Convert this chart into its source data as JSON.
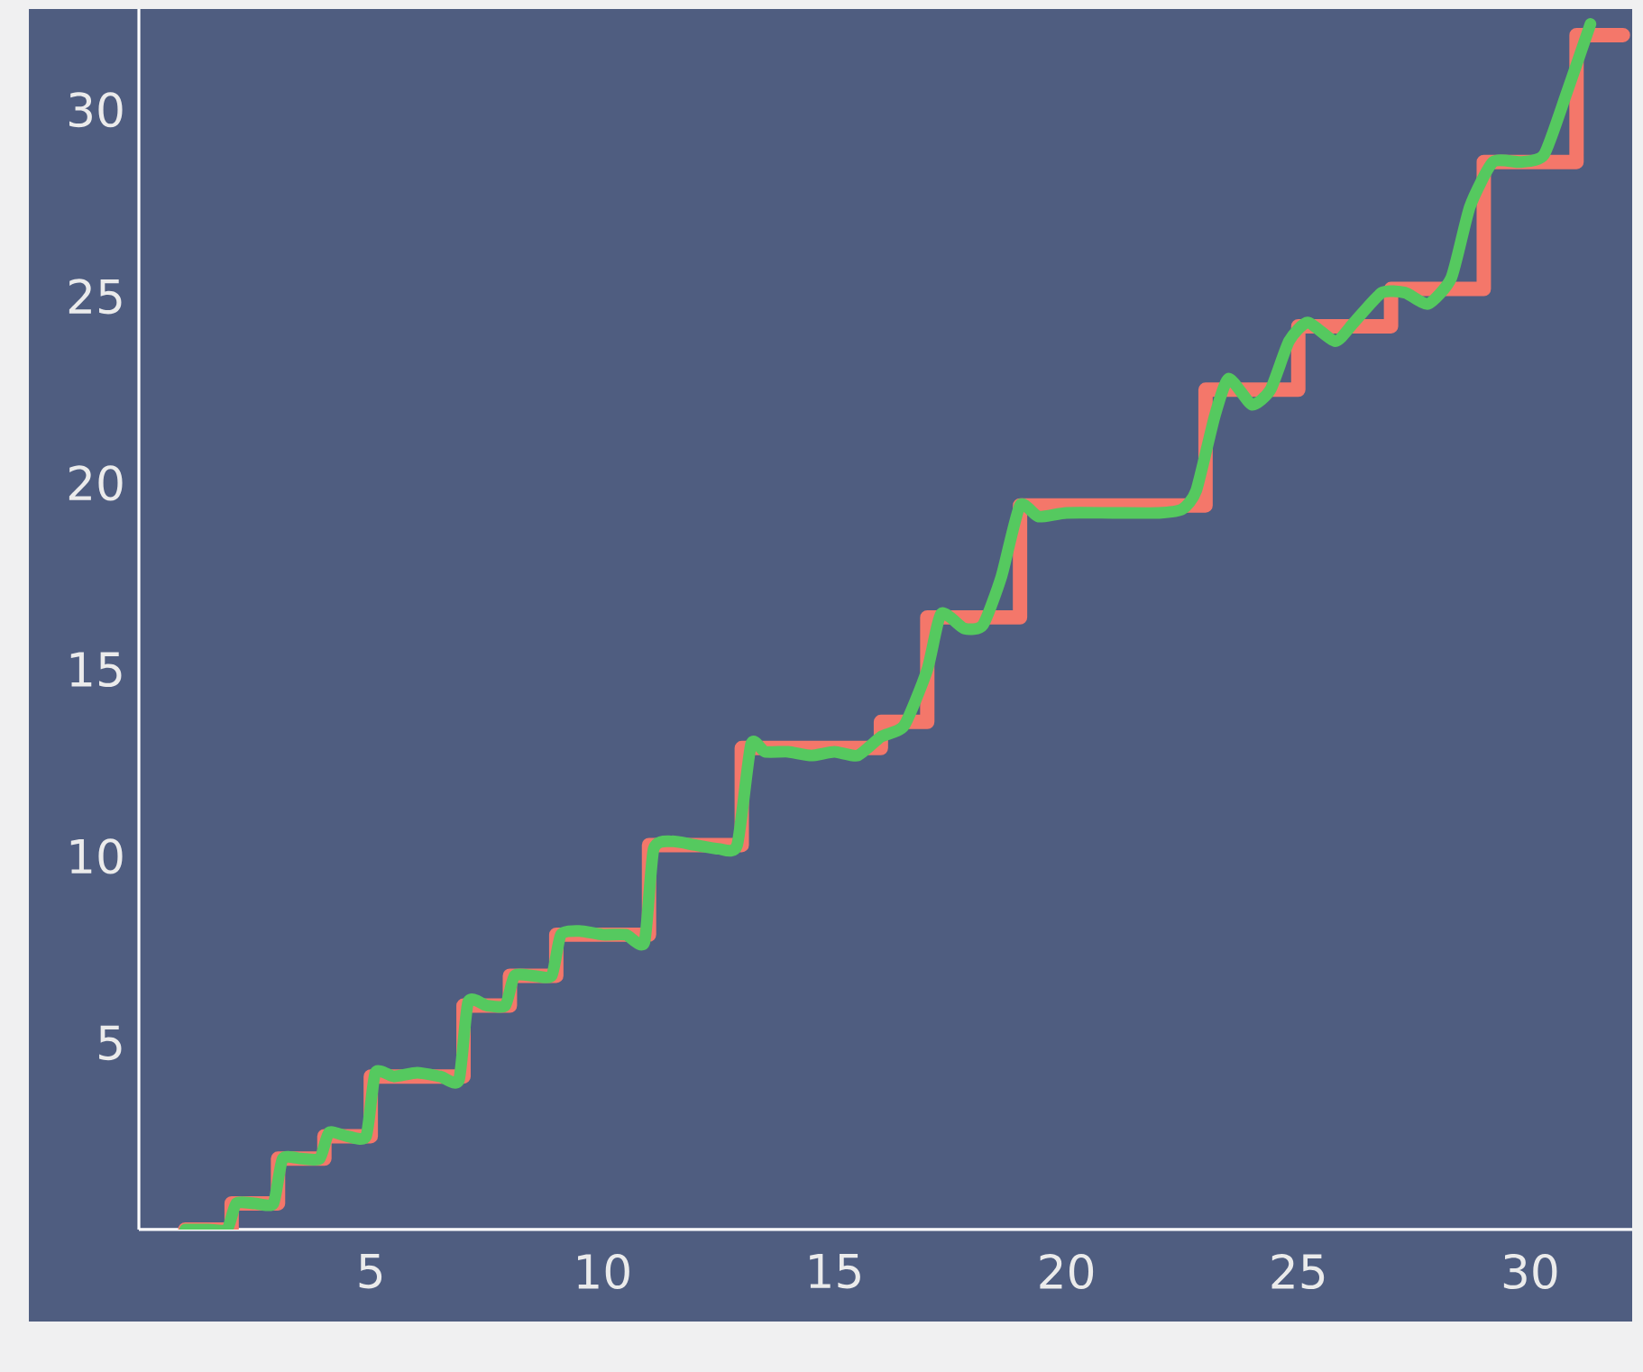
{
  "chart_data": {
    "type": "line",
    "xlim": [
      0,
      32.2
    ],
    "ylim": [
      0,
      32.7
    ],
    "xticks": [
      5,
      10,
      15,
      20,
      25,
      30
    ],
    "yticks": [
      5,
      10,
      15,
      20,
      25,
      30
    ],
    "grid": false,
    "marker": "none",
    "line_style": "solid",
    "series": [
      {
        "type": "step",
        "color": "#f4776a",
        "x": [
          1,
          2,
          3,
          4,
          5,
          7,
          8,
          9,
          11,
          13,
          16,
          17,
          19,
          23,
          25,
          27,
          29,
          31,
          32
        ],
        "values": [
          0,
          0.7,
          1.9,
          2.5,
          4.1,
          6.0,
          6.8,
          7.9,
          10.3,
          12.9,
          13.6,
          16.4,
          19.4,
          22.5,
          24.2,
          25.2,
          28.6,
          32.0,
          32.0
        ]
      },
      {
        "color": "#55c95f",
        "x": [
          1,
          1.5,
          1.9,
          2.1,
          2.5,
          2.9,
          3.1,
          3.5,
          3.9,
          4.1,
          4.5,
          4.9,
          5.1,
          5.5,
          6,
          6.5,
          6.9,
          7.1,
          7.5,
          7.9,
          8.1,
          8.5,
          8.9,
          9.1,
          9.5,
          10,
          10.5,
          10.9,
          11.1,
          11.5,
          12,
          12.5,
          12.9,
          13.2,
          13.5,
          14,
          14.5,
          15,
          15.5,
          16,
          16.5,
          17,
          17.3,
          17.8,
          18.2,
          18.6,
          19.0,
          19.4,
          20,
          21,
          22,
          22.5,
          22.8,
          23.2,
          23.5,
          24,
          24.4,
          24.8,
          25.2,
          25.8,
          26.2,
          26.8,
          27.3,
          27.8,
          28.3,
          28.7,
          29.2,
          29.8,
          30.3,
          30.8,
          31.3
        ],
        "values": [
          0,
          0,
          0,
          0.7,
          0.7,
          0.7,
          1.9,
          1.9,
          1.9,
          2.6,
          2.5,
          2.5,
          4.2,
          4.1,
          4.2,
          4.1,
          4.0,
          6.1,
          6.0,
          6.0,
          6.8,
          6.8,
          6.8,
          7.9,
          8.0,
          7.9,
          7.9,
          7.7,
          10.2,
          10.4,
          10.3,
          10.2,
          10.3,
          13.0,
          12.8,
          12.8,
          12.7,
          12.8,
          12.7,
          13.2,
          13.5,
          15.0,
          16.5,
          16.1,
          16.2,
          17.5,
          19.4,
          19.1,
          19.2,
          19.2,
          19.2,
          19.3,
          19.8,
          21.8,
          22.8,
          22.1,
          22.5,
          23.8,
          24.3,
          23.8,
          24.3,
          25.1,
          25.1,
          24.8,
          25.5,
          27.4,
          28.6,
          28.6,
          28.8,
          30.5,
          32.3
        ]
      }
    ]
  }
}
